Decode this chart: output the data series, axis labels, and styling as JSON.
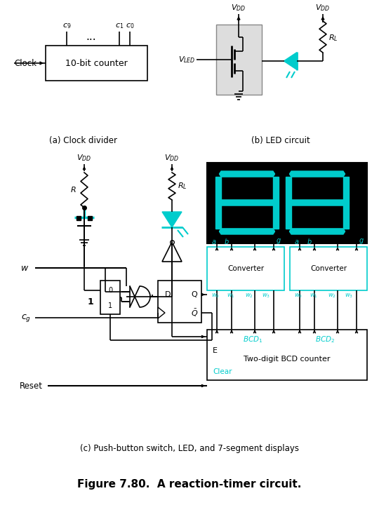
{
  "title": "Figure 7.80.  A reaction-timer circuit.",
  "caption_a": "(a) Clock divider",
  "caption_b": "(b) LED circuit",
  "caption_c": "(c) Push-button switch, LED, and 7-segment displays",
  "cyan": "#00CCCC",
  "black": "#000000",
  "white": "#FFFFFF",
  "light_gray": "#DDDDDD"
}
